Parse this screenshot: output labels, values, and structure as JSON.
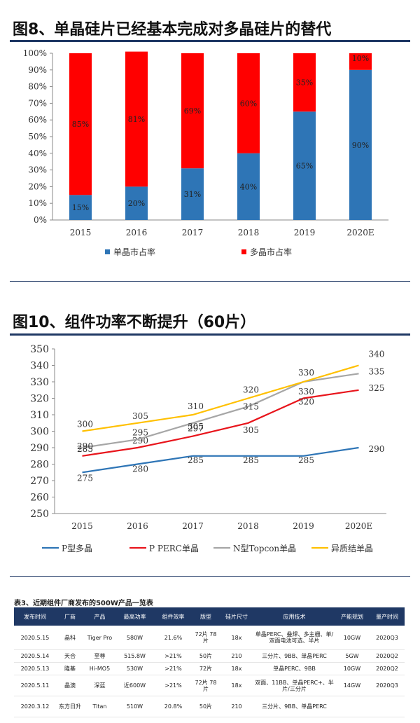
{
  "fig8": {
    "title": "图8、单晶硅片已经基本完成对多晶硅片的替代"
  },
  "fig10": {
    "title": "图10、组件功率不断提升（60片）"
  },
  "chart_data": [
    {
      "type": "bar",
      "stacked": true,
      "title": "图8、单晶硅片已经基本完成对多晶硅片的替代",
      "categories": [
        "2015",
        "2016",
        "2017",
        "2018",
        "2019",
        "2020E"
      ],
      "series": [
        {
          "name": "单晶市占率",
          "color": "#2e75b6",
          "values": [
            15,
            20,
            31,
            40,
            65,
            90
          ],
          "labels": [
            "15%",
            "20%",
            "31%",
            "40%",
            "65%",
            "90%"
          ]
        },
        {
          "name": "多晶市占率",
          "color": "#ff0000",
          "values": [
            85,
            81,
            69,
            60,
            35,
            10
          ],
          "labels": [
            "85%",
            "81%",
            "69%",
            "60%",
            "35%",
            "10%"
          ]
        }
      ],
      "ylim": [
        0,
        100
      ],
      "yticks": [
        "0%",
        "10%",
        "20%",
        "30%",
        "40%",
        "50%",
        "60%",
        "70%",
        "80%",
        "90%",
        "100%"
      ],
      "legend_position": "bottom",
      "grid": false
    },
    {
      "type": "line",
      "title": "图10、组件功率不断提升（60片）",
      "categories": [
        "2015",
        "2016",
        "2017",
        "2018",
        "2019",
        "2020E"
      ],
      "series": [
        {
          "name": "P型多晶",
          "color": "#2e75b6",
          "values": [
            275,
            280,
            285,
            285,
            285,
            290
          ]
        },
        {
          "name": "P PERC单晶",
          "color": "#e8141b",
          "values": [
            285,
            290,
            297,
            305,
            320,
            325
          ]
        },
        {
          "name": "N型Topcon单晶",
          "color": "#a6a6a6",
          "values": [
            290,
            295,
            305,
            315,
            330,
            335
          ]
        },
        {
          "name": "异质结单晶",
          "color": "#ffc000",
          "values": [
            300,
            305,
            310,
            320,
            330,
            340
          ]
        }
      ],
      "ylim": [
        250,
        350
      ],
      "yticks": [
        250,
        260,
        270,
        280,
        290,
        300,
        310,
        320,
        330,
        340,
        350
      ],
      "legend_position": "bottom",
      "grid": false
    }
  ],
  "table": {
    "caption": "表3、近期组件厂商发布的500W产品一览表",
    "headers": [
      "发布时间",
      "厂商",
      "产品",
      "最高功率",
      "组件效率",
      "版型",
      "硅片尺寸",
      "应用技术",
      "产能规划",
      "量产时间"
    ],
    "rows": [
      [
        "2020.5.15",
        "晶科",
        "Tiger Pro",
        "580W",
        "21.6%",
        "72片 78片",
        "18x",
        "单晶PERC、叠焊、多主栅、单/双面电池可选、半片",
        "10GW",
        "2020Q3"
      ],
      [
        "2020.5.14",
        "天合",
        "至尊",
        "515.8W",
        ">21%",
        "50片",
        "210",
        "三分片、9BB、单晶PERC",
        "5GW",
        "2020Q2"
      ],
      [
        "2020.5.13",
        "隆基",
        "Hi-MO5",
        "530W",
        ">21%",
        "72片",
        "18x",
        "单晶PERC、9BB",
        "10GW",
        "2020Q2"
      ],
      [
        "2020.5.11",
        "晶澳",
        "深蓝",
        "近600W",
        ">21%",
        "72片 78片",
        "18x",
        "双面、11BB、单晶PERC+、半片/三分片",
        "14GW",
        "2020Q3"
      ],
      [
        "2020.3.12",
        "东方日升",
        "Titan",
        "510W",
        "20.8%",
        "50片",
        "210",
        "三分片、9BB、单晶PERC",
        "",
        ""
      ]
    ]
  }
}
